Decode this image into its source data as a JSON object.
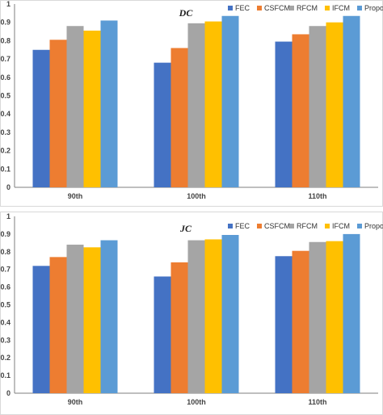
{
  "chart_data": [
    {
      "type": "bar",
      "title": "DC",
      "categories": [
        "90th",
        "100th",
        "110th"
      ],
      "series": [
        {
          "name": "FEC",
          "values": [
            0.75,
            0.68,
            0.795
          ],
          "color": "#4472C4"
        },
        {
          "name": "CSFCM",
          "values": [
            0.805,
            0.76,
            0.835
          ],
          "color": "#ED7D31"
        },
        {
          "name": "RFCM",
          "values": [
            0.88,
            0.895,
            0.88
          ],
          "color": "#A5A5A5"
        },
        {
          "name": "IFCM",
          "values": [
            0.855,
            0.905,
            0.9
          ],
          "color": "#FFC000"
        },
        {
          "name": "Proposed",
          "values": [
            0.91,
            0.935,
            0.935
          ],
          "color": "#5B9BD5"
        }
      ],
      "ylim": [
        0,
        1
      ],
      "yticks": [
        "0",
        "0.1",
        "0.2",
        "0.3",
        "0.4",
        "0.5",
        "0.6",
        "0.7",
        "0.8",
        "0.9",
        "1"
      ],
      "xlabel": "",
      "ylabel": "",
      "legend": "top-right",
      "grid": false
    },
    {
      "type": "bar",
      "title": "JC",
      "categories": [
        "90th",
        "100th",
        "110th"
      ],
      "series": [
        {
          "name": "FEC",
          "values": [
            0.72,
            0.66,
            0.775
          ],
          "color": "#4472C4"
        },
        {
          "name": "CSFCM",
          "values": [
            0.77,
            0.74,
            0.805
          ],
          "color": "#ED7D31"
        },
        {
          "name": "RFCM",
          "values": [
            0.84,
            0.865,
            0.855
          ],
          "color": "#A5A5A5"
        },
        {
          "name": "IFCM",
          "values": [
            0.825,
            0.87,
            0.86
          ],
          "color": "#FFC000"
        },
        {
          "name": "Proposed",
          "values": [
            0.865,
            0.895,
            0.9
          ],
          "color": "#5B9BD5"
        }
      ],
      "ylim": [
        0,
        1
      ],
      "yticks": [
        "0",
        "0.1",
        "0.2",
        "0.3",
        "0.4",
        "0.5",
        "0.6",
        "0.7",
        "0.8",
        "0.9",
        "1"
      ],
      "xlabel": "",
      "ylabel": "",
      "legend": "top-right",
      "grid": false
    }
  ]
}
